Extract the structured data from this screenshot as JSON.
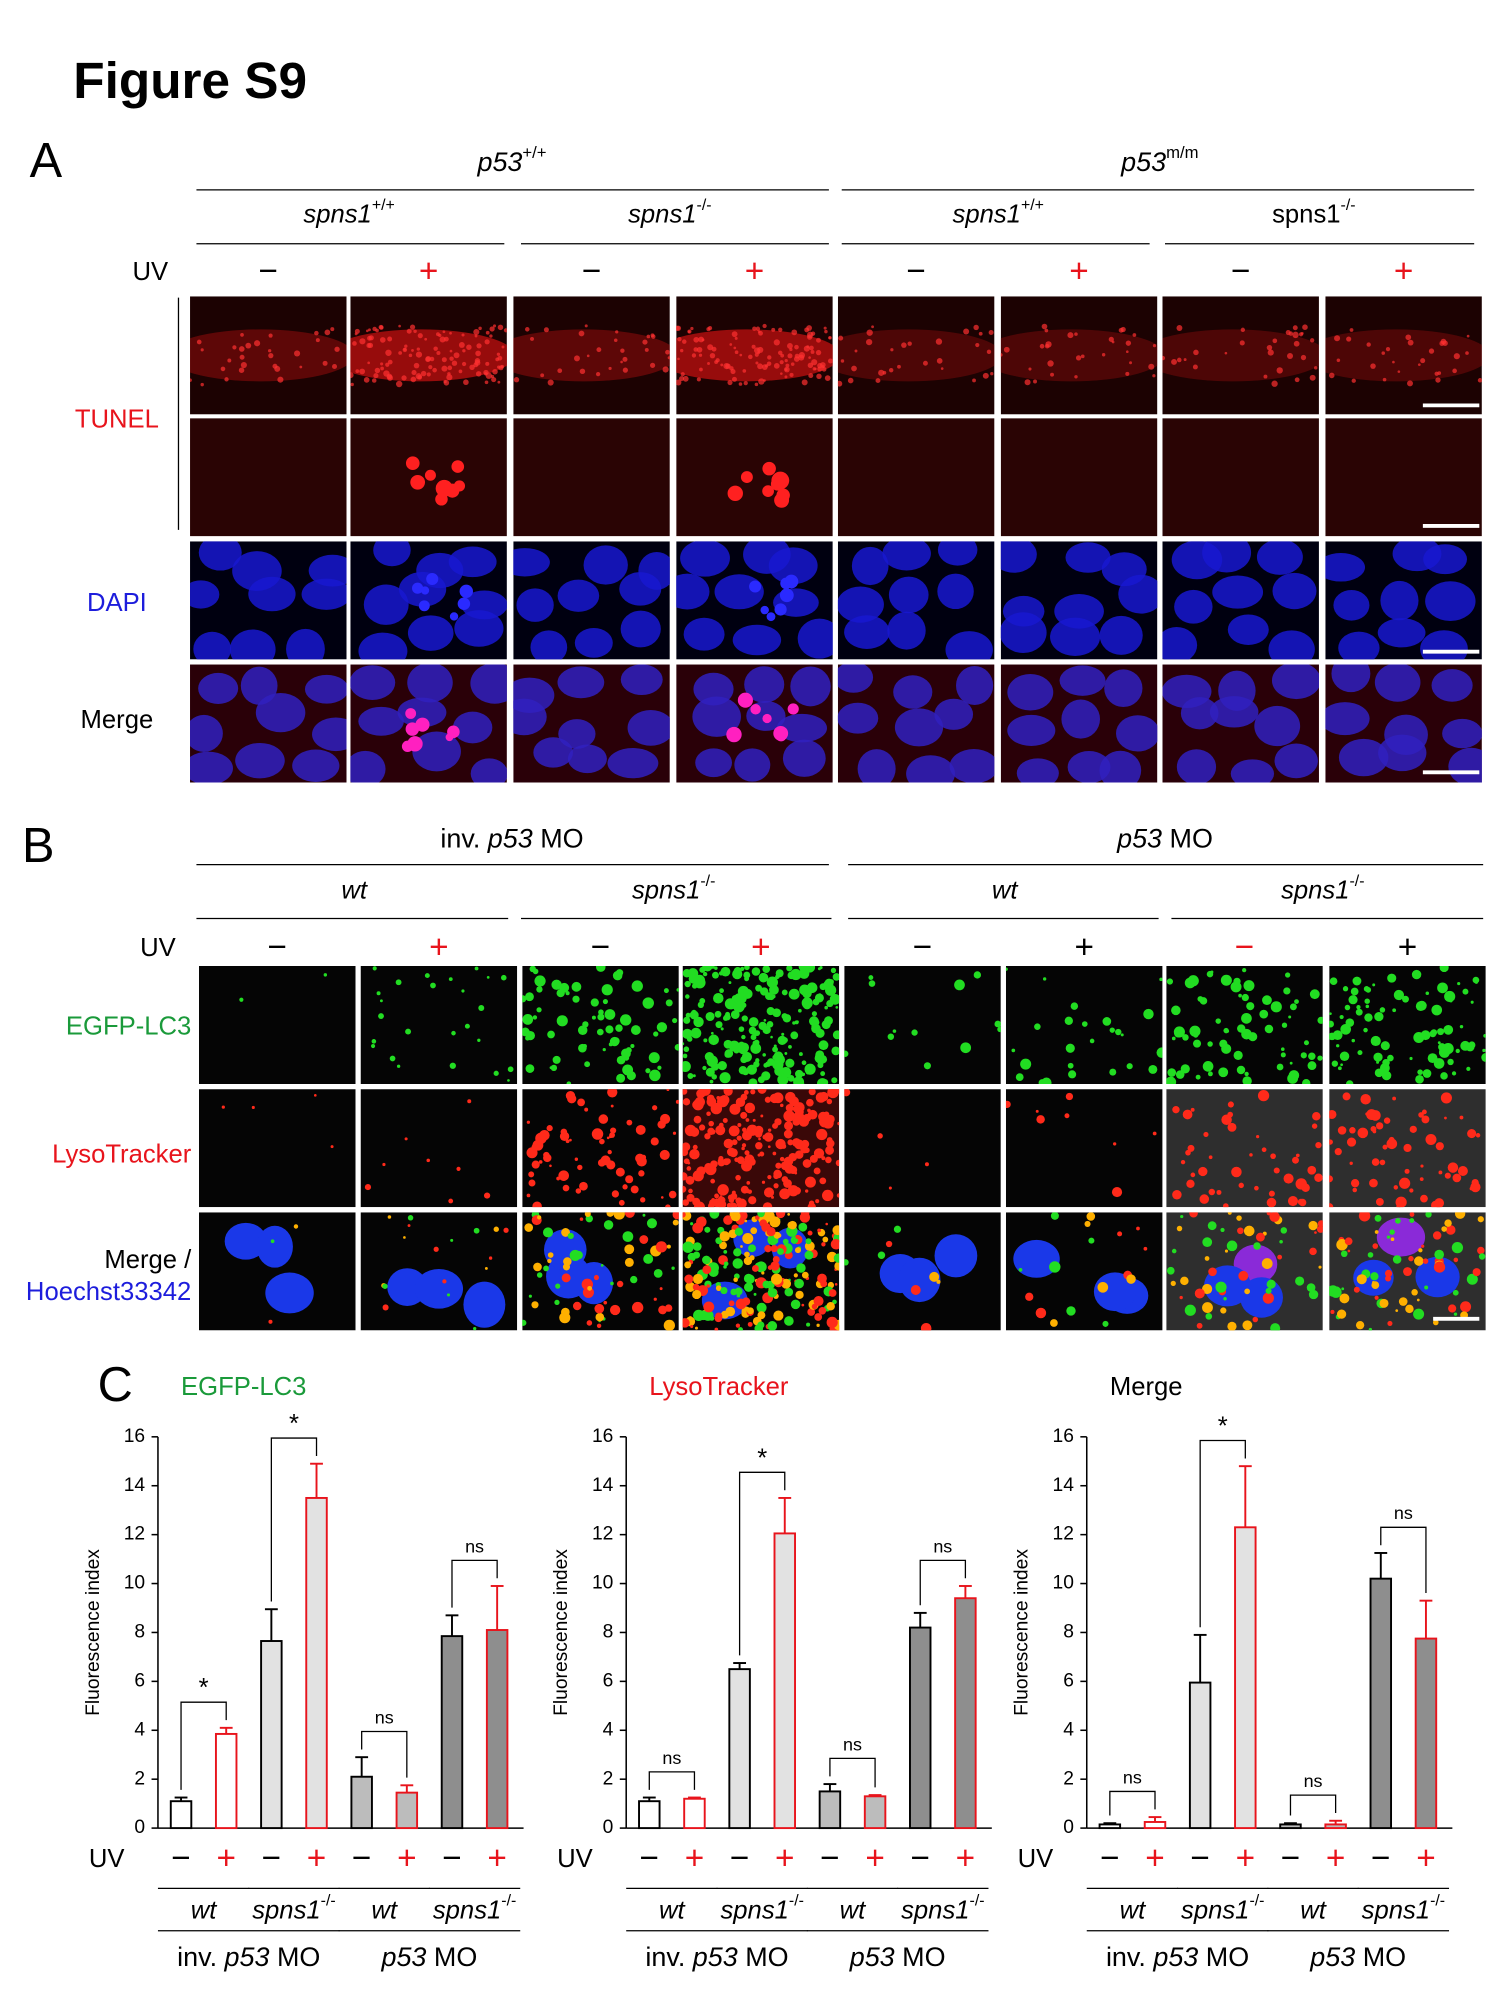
{
  "figure_title": "Figure S9",
  "panel_a": {
    "label": "A",
    "groups": [
      {
        "base": "p53",
        "sup": "+/+"
      },
      {
        "base": "p53",
        "sup": "m/m"
      }
    ],
    "subgroups": [
      {
        "base": "spns1",
        "sup": "+/+"
      },
      {
        "base": "spns1",
        "sup": "-/-"
      },
      {
        "base": "spns1",
        "sup": "+/+"
      },
      {
        "base": "spns1",
        "sup": "-/-",
        "italic": false
      }
    ],
    "uv_label": "UV",
    "uv_signs": [
      {
        "text": "−",
        "color": "#000000"
      },
      {
        "text": "+",
        "color": "#e8141c"
      },
      {
        "text": "−",
        "color": "#000000"
      },
      {
        "text": "+",
        "color": "#e8141c"
      },
      {
        "text": "−",
        "color": "#000000"
      },
      {
        "text": "+",
        "color": "#e8141c"
      },
      {
        "text": "−",
        "color": "#000000"
      },
      {
        "text": "+",
        "color": "#e8141c"
      }
    ],
    "rows": [
      {
        "text": "TUNEL",
        "color": "#e8141c"
      },
      {
        "text": "DAPI",
        "color": "#1d1ddc"
      },
      {
        "text": "Merge",
        "color": "#000000"
      }
    ]
  },
  "panel_b": {
    "label": "B",
    "groups": [
      {
        "pre": "inv. ",
        "italic": "p53",
        "post": " MO"
      },
      {
        "italic": "p53",
        "post": " MO"
      }
    ],
    "subgroups": [
      "wt",
      {
        "base": "spns1",
        "sup": "-/-"
      },
      "wt",
      {
        "base": "spns1",
        "sup": "-/-"
      }
    ],
    "uv_label": "UV",
    "uv_signs": [
      {
        "text": "−",
        "color": "#000000"
      },
      {
        "text": "+",
        "color": "#e8141c"
      },
      {
        "text": "−",
        "color": "#000000"
      },
      {
        "text": "+",
        "color": "#e8141c"
      },
      {
        "text": "−",
        "color": "#000000"
      },
      {
        "text": "+",
        "color": "#000000"
      },
      {
        "text": "−",
        "color": "#e8141c"
      },
      {
        "text": "+",
        "color": "#000000"
      }
    ],
    "rows": [
      {
        "text": "EGFP-LC3",
        "color": "#1a9a3a"
      },
      {
        "text": "LysoTracker",
        "color": "#e8141c"
      },
      {
        "text": "Merge /",
        "color": "#000000"
      },
      {
        "text": "Hoechst33342",
        "color": "#1d1ddc"
      }
    ]
  },
  "panel_c": {
    "label": "C"
  },
  "chart_data": [
    {
      "type": "bar",
      "title": "EGFP-LC3",
      "title_color": "#1a9a3a",
      "ylabel": "Fluorescence index",
      "ylim": [
        0,
        16
      ],
      "yticks": [
        0,
        2,
        4,
        6,
        8,
        10,
        12,
        14,
        16
      ],
      "x_label": "UV",
      "categories": [
        "−",
        "+",
        "−",
        "+",
        "−",
        "+",
        "−",
        "+"
      ],
      "category_colors": [
        "#000000",
        "#e8141c",
        "#000000",
        "#e8141c",
        "#000000",
        "#e8141c",
        "#000000",
        "#e8141c"
      ],
      "values": [
        1.1,
        3.85,
        7.65,
        13.5,
        2.1,
        1.45,
        7.85,
        8.1
      ],
      "errors": [
        0.15,
        0.25,
        1.3,
        1.4,
        0.8,
        0.3,
        0.85,
        1.8
      ],
      "bar_colors": [
        "#ffffff",
        "#ffffff",
        "#e2e2e2",
        "#e2e2e2",
        "#bcbcbc",
        "#bcbcbc",
        "#8e8e8e",
        "#8e8e8e"
      ],
      "edge_colors": [
        "#000000",
        "#e8141c",
        "#000000",
        "#e8141c",
        "#000000",
        "#e8141c",
        "#000000",
        "#e8141c"
      ],
      "annotations": [
        "*",
        "*",
        "ns",
        "ns"
      ],
      "genotypes": [
        "wt",
        {
          "base": "spns1",
          "sup": "-/-"
        },
        "wt",
        {
          "base": "spns1",
          "sup": "-/-"
        }
      ],
      "treatments": [
        {
          "pre": "inv. ",
          "italic": "p53",
          "post": " MO"
        },
        {
          "italic": "p53",
          "post": " MO"
        }
      ]
    },
    {
      "type": "bar",
      "title": "LysoTracker",
      "title_color": "#e8141c",
      "ylabel": "Fluorescence index",
      "ylim": [
        0,
        16
      ],
      "yticks": [
        0,
        2,
        4,
        6,
        8,
        10,
        12,
        14,
        16
      ],
      "x_label": "UV",
      "categories": [
        "−",
        "+",
        "−",
        "+",
        "−",
        "+",
        "−",
        "+"
      ],
      "category_colors": [
        "#000000",
        "#e8141c",
        "#000000",
        "#e8141c",
        "#000000",
        "#e8141c",
        "#000000",
        "#e8141c"
      ],
      "values": [
        1.1,
        1.2,
        6.5,
        12.05,
        1.5,
        1.3,
        8.2,
        9.4
      ],
      "errors": [
        0.15,
        0.05,
        0.25,
        1.45,
        0.3,
        0.05,
        0.6,
        0.5
      ],
      "bar_colors": [
        "#ffffff",
        "#ffffff",
        "#e2e2e2",
        "#e2e2e2",
        "#bcbcbc",
        "#bcbcbc",
        "#8e8e8e",
        "#8e8e8e"
      ],
      "edge_colors": [
        "#000000",
        "#e8141c",
        "#000000",
        "#e8141c",
        "#000000",
        "#e8141c",
        "#000000",
        "#e8141c"
      ],
      "annotations": [
        "ns",
        "*",
        "ns",
        "ns"
      ],
      "genotypes": [
        "wt",
        {
          "base": "spns1",
          "sup": "-/-"
        },
        "wt",
        {
          "base": "spns1",
          "sup": "-/-"
        }
      ],
      "treatments": [
        {
          "pre": "inv. ",
          "italic": "p53",
          "post": " MO"
        },
        {
          "italic": "p53",
          "post": " MO"
        }
      ]
    },
    {
      "type": "bar",
      "title": "Merge",
      "title_color": "#000000",
      "ylabel": "Fluorescence index",
      "ylim": [
        0,
        16
      ],
      "yticks": [
        0,
        2,
        4,
        6,
        8,
        10,
        12,
        14,
        16
      ],
      "x_label": "UV",
      "categories": [
        "−",
        "+",
        "−",
        "+",
        "−",
        "+",
        "−",
        "+"
      ],
      "category_colors": [
        "#000000",
        "#e8141c",
        "#000000",
        "#e8141c",
        "#000000",
        "#e8141c",
        "#000000",
        "#e8141c"
      ],
      "values": [
        0.15,
        0.25,
        5.95,
        12.3,
        0.15,
        0.15,
        10.2,
        7.75
      ],
      "errors": [
        0.05,
        0.2,
        1.95,
        2.5,
        0.05,
        0.15,
        1.05,
        1.55
      ],
      "bar_colors": [
        "#ffffff",
        "#ffffff",
        "#e2e2e2",
        "#e2e2e2",
        "#bcbcbc",
        "#bcbcbc",
        "#8e8e8e",
        "#8e8e8e"
      ],
      "edge_colors": [
        "#000000",
        "#e8141c",
        "#000000",
        "#e8141c",
        "#000000",
        "#e8141c",
        "#000000",
        "#e8141c"
      ],
      "annotations": [
        "ns",
        "*",
        "ns",
        "ns"
      ],
      "genotypes": [
        "wt",
        {
          "base": "spns1",
          "sup": "-/-"
        },
        "wt",
        {
          "base": "spns1",
          "sup": "-/-"
        }
      ],
      "treatments": [
        {
          "pre": "inv. ",
          "italic": "p53",
          "post": " MO"
        },
        {
          "italic": "p53",
          "post": " MO"
        }
      ]
    }
  ]
}
